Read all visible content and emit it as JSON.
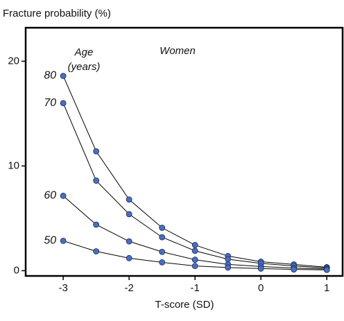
{
  "chart_data": {
    "type": "line",
    "title": "Fracture probability (%)",
    "xlabel": "T-score (SD)",
    "annotations": [
      "Age",
      "(years)",
      "Women"
    ],
    "x": [
      -3,
      -2.5,
      -2,
      -1.5,
      -1,
      -0.5,
      0,
      0.5,
      1
    ],
    "series": [
      {
        "name": "80",
        "color": "#4a6fc0",
        "values": [
          18.6,
          11.4,
          6.8,
          4.1,
          2.45,
          1.4,
          0.86,
          0.6,
          0.33
        ]
      },
      {
        "name": "70",
        "color": "#4a6fc0",
        "values": [
          16.0,
          8.6,
          5.4,
          3.2,
          1.9,
          1.1,
          0.7,
          0.45,
          0.25
        ]
      },
      {
        "name": "60",
        "color": "#4a6fc0",
        "values": [
          7.15,
          4.4,
          2.8,
          1.8,
          1.05,
          0.6,
          0.4,
          0.25,
          0.15
        ]
      },
      {
        "name": "50",
        "color": "#4a6fc0",
        "values": [
          2.85,
          1.85,
          1.2,
          0.8,
          0.45,
          0.3,
          0.2,
          0.12,
          0.08
        ]
      }
    ],
    "xlim": [
      -3.57,
      1.24
    ],
    "ylim": [
      -0.5,
      23.2
    ],
    "xticks": [
      -3,
      -2,
      -1,
      0,
      1
    ],
    "yticks": [
      0,
      10,
      20
    ],
    "grid": false
  }
}
